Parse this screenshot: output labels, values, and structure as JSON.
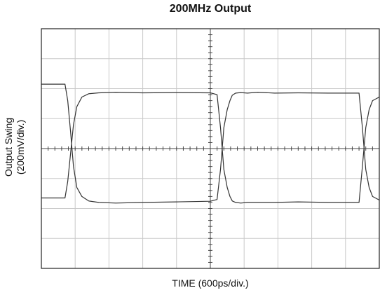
{
  "chart_data": {
    "type": "line",
    "title": "200MHz Output",
    "xlabel": "TIME (600ps/div.)",
    "ylabel_line1": "Output Swing",
    "ylabel_line2": "(200mV/div.)",
    "x_units": "div",
    "y_units": "div",
    "xlim": [
      0,
      10
    ],
    "ylim": [
      -4,
      4
    ],
    "grid": true,
    "divisions": {
      "x": 10,
      "y": 8
    },
    "series": [
      {
        "x": [
          0,
          0.7,
          0.78,
          0.86,
          0.95,
          1.05,
          1.2,
          1.4,
          1.7,
          2.2,
          3,
          4,
          5,
          5.2,
          5.3,
          5.4,
          5.5,
          5.58,
          5.65,
          5.75,
          5.9,
          6.1,
          6.4,
          6.9,
          7.6,
          8.5,
          9.3,
          9.4,
          9.5,
          9.6,
          9.7,
          9.8,
          10
        ],
        "y": [
          2.15,
          2.15,
          1.6,
          0.6,
          -0.6,
          -1.3,
          -1.6,
          -1.75,
          -1.8,
          -1.82,
          -1.8,
          -1.78,
          -1.76,
          -1.7,
          -0.7,
          0.7,
          1.3,
          1.6,
          1.78,
          1.85,
          1.87,
          1.85,
          1.88,
          1.85,
          1.86,
          1.85,
          1.85,
          1.85,
          0.7,
          -0.7,
          -1.3,
          -1.6,
          -1.72
        ]
      },
      {
        "x": [
          0,
          0.7,
          0.78,
          0.86,
          0.95,
          1.05,
          1.2,
          1.4,
          1.7,
          2.2,
          3,
          4,
          5,
          5.2,
          5.3,
          5.4,
          5.5,
          5.58,
          5.65,
          5.75,
          5.9,
          6.1,
          6.4,
          6.9,
          7.6,
          8.5,
          9.3,
          9.4,
          9.5,
          9.6,
          9.7,
          9.8,
          10
        ],
        "y": [
          -1.65,
          -1.65,
          -1.1,
          -0.2,
          0.8,
          1.4,
          1.72,
          1.83,
          1.86,
          1.88,
          1.86,
          1.87,
          1.86,
          1.8,
          0.7,
          -0.7,
          -1.3,
          -1.6,
          -1.75,
          -1.8,
          -1.82,
          -1.8,
          -1.8,
          -1.8,
          -1.78,
          -1.8,
          -1.8,
          -1.8,
          -0.6,
          0.7,
          1.3,
          1.6,
          1.72
        ]
      }
    ]
  },
  "colors": {
    "trace": "#333333",
    "grid": "#c9c9c9",
    "frame": "#222222",
    "center_axis": "#444444"
  }
}
